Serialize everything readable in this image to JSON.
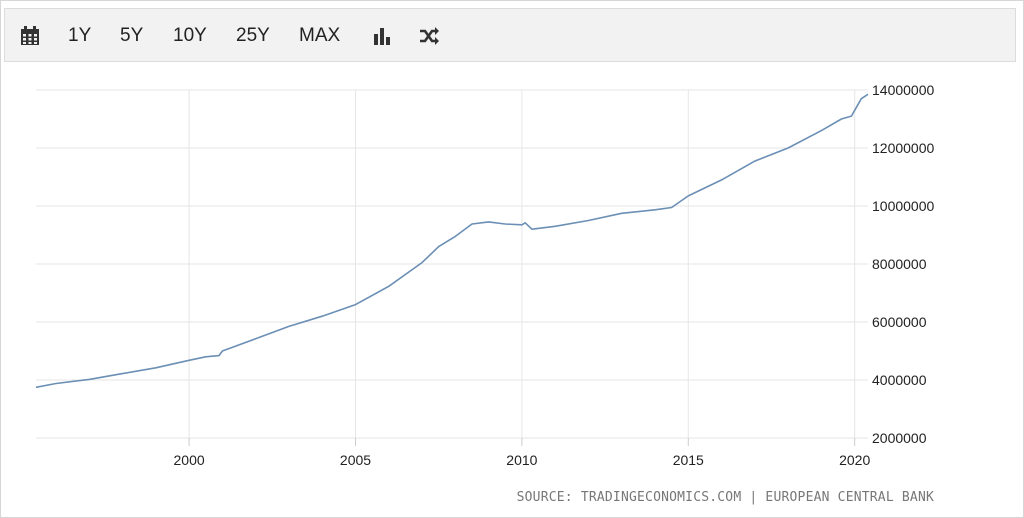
{
  "toolbar": {
    "calendar_icon": "calendar-icon",
    "ranges": [
      "1Y",
      "5Y",
      "10Y",
      "25Y",
      "MAX"
    ],
    "bar_chart_icon": "bar-chart-icon",
    "shuffle_icon": "shuffle-icon"
  },
  "source_text": "SOURCE: TRADINGECONOMICS.COM | EUROPEAN CENTRAL BANK",
  "chart_data": {
    "type": "line",
    "title": "",
    "xlabel": "",
    "ylabel": "",
    "xlim": [
      1995.4,
      2020.4
    ],
    "ylim": [
      2000000,
      14000000
    ],
    "x_ticks": [
      2000,
      2005,
      2010,
      2015,
      2020
    ],
    "y_ticks": [
      2000000,
      4000000,
      6000000,
      8000000,
      10000000,
      12000000,
      14000000
    ],
    "y_axis_position": "right",
    "grid": true,
    "line_color": "#6b8fb5",
    "series": [
      {
        "name": "",
        "points": [
          [
            1995.4,
            3750000
          ],
          [
            1996.0,
            3880000
          ],
          [
            1997.0,
            4020000
          ],
          [
            1998.0,
            4220000
          ],
          [
            1999.0,
            4420000
          ],
          [
            2000.0,
            4680000
          ],
          [
            2000.5,
            4800000
          ],
          [
            2000.9,
            4840000
          ],
          [
            2001.0,
            5000000
          ],
          [
            2002.0,
            5420000
          ],
          [
            2003.0,
            5850000
          ],
          [
            2004.0,
            6200000
          ],
          [
            2005.0,
            6600000
          ],
          [
            2006.0,
            7230000
          ],
          [
            2007.0,
            8050000
          ],
          [
            2007.5,
            8600000
          ],
          [
            2008.0,
            8950000
          ],
          [
            2008.5,
            9380000
          ],
          [
            2009.0,
            9450000
          ],
          [
            2009.5,
            9380000
          ],
          [
            2010.0,
            9350000
          ],
          [
            2010.1,
            9420000
          ],
          [
            2010.3,
            9200000
          ],
          [
            2011.0,
            9300000
          ],
          [
            2012.0,
            9500000
          ],
          [
            2013.0,
            9750000
          ],
          [
            2014.0,
            9870000
          ],
          [
            2014.5,
            9950000
          ],
          [
            2015.0,
            10350000
          ],
          [
            2016.0,
            10900000
          ],
          [
            2017.0,
            11550000
          ],
          [
            2018.0,
            12000000
          ],
          [
            2019.0,
            12600000
          ],
          [
            2019.6,
            13000000
          ],
          [
            2019.9,
            13100000
          ],
          [
            2020.0,
            13300000
          ],
          [
            2020.2,
            13700000
          ],
          [
            2020.4,
            13850000
          ]
        ]
      }
    ]
  }
}
